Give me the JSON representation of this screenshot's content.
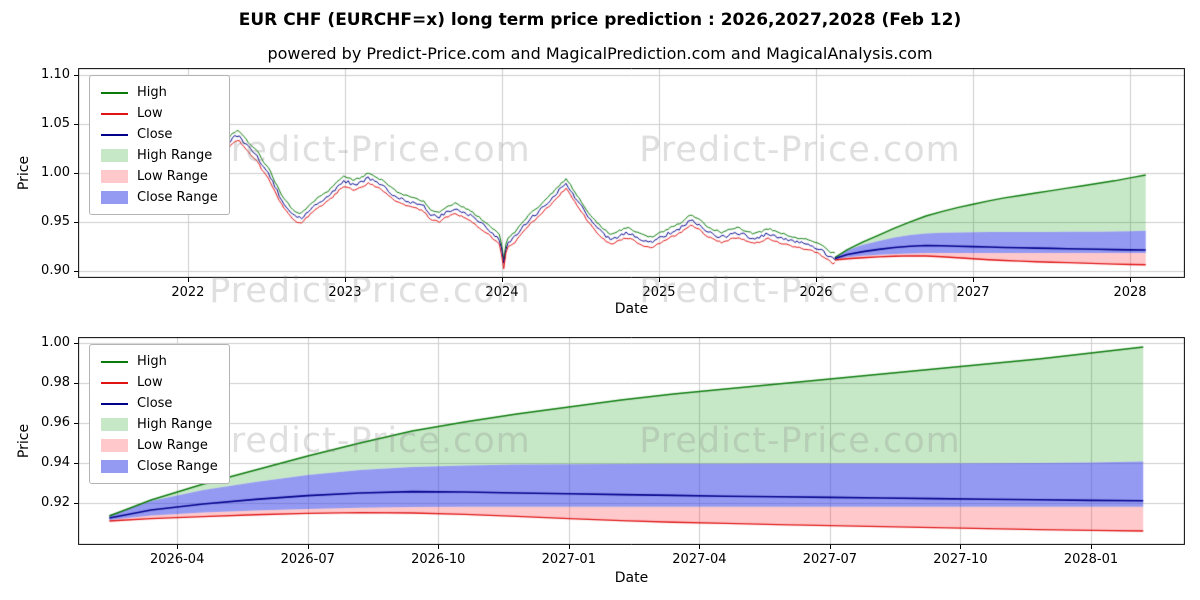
{
  "title": "EUR CHF (EURCHF=x) long term price prediction : 2026,2027,2028 (Feb 12)",
  "subtitle": "powered by Predict-Price.com and MagicalPrediction.com and MagicalAnalysis.com",
  "watermark": "Predict-Price.com",
  "colors": {
    "high_line": "#0a7a0a",
    "low_line": "#e01212",
    "close_line": "#00008b",
    "high_range": "rgba(0,150,0,0.22)",
    "low_range": "rgba(255,60,70,0.28)",
    "close_range": "rgba(60,70,230,0.55)",
    "grid": "#cccccc",
    "axis": "#000000",
    "watermark_color": "rgba(128,128,128,0.25)"
  },
  "legend": [
    {
      "label": "High",
      "kind": "line",
      "color_key": "high_line"
    },
    {
      "label": "Low",
      "kind": "line",
      "color_key": "low_line"
    },
    {
      "label": "Close",
      "kind": "line",
      "color_key": "close_line"
    },
    {
      "label": "High Range",
      "kind": "patch",
      "color_key": "high_range"
    },
    {
      "label": "Low Range",
      "kind": "patch",
      "color_key": "low_range"
    },
    {
      "label": "Close Range",
      "kind": "patch",
      "color_key": "close_range"
    }
  ],
  "chart_data": {
    "type": "line",
    "forecast": {
      "t": [
        2026.12,
        2026.2,
        2026.3,
        2026.4,
        2026.5,
        2026.6,
        2026.7,
        2026.8,
        2026.9,
        2027.0,
        2027.1,
        2027.2,
        2027.3,
        2027.4,
        2027.5,
        2027.6,
        2027.7,
        2027.8,
        2027.9,
        2028.0,
        2028.1
      ],
      "high": [
        0.9135,
        0.9215,
        0.9295,
        0.9365,
        0.9435,
        0.95,
        0.956,
        0.9605,
        0.9645,
        0.968,
        0.9715,
        0.9745,
        0.977,
        0.9795,
        0.982,
        0.9845,
        0.987,
        0.9895,
        0.992,
        0.995,
        0.998
      ],
      "close_high": [
        0.914,
        0.921,
        0.9265,
        0.9305,
        0.934,
        0.9365,
        0.938,
        0.9388,
        0.9392,
        0.9394,
        0.9395,
        0.9396,
        0.9396,
        0.9397,
        0.9397,
        0.9398,
        0.9398,
        0.9399,
        0.94,
        0.9403,
        0.9408
      ],
      "close": [
        0.9125,
        0.9165,
        0.9195,
        0.9218,
        0.9237,
        0.925,
        0.9257,
        0.9255,
        0.925,
        0.9246,
        0.9242,
        0.9238,
        0.9234,
        0.9231,
        0.9228,
        0.9225,
        0.9222,
        0.9219,
        0.9216,
        0.9213,
        0.9211
      ],
      "close_low": [
        0.9115,
        0.9138,
        0.9152,
        0.9162,
        0.917,
        0.9176,
        0.918,
        0.9181,
        0.9181,
        0.9181,
        0.9181,
        0.9181,
        0.9181,
        0.9181,
        0.9181,
        0.9181,
        0.9181,
        0.9181,
        0.9181,
        0.9181,
        0.9181
      ],
      "low": [
        0.911,
        0.9122,
        0.9132,
        0.9141,
        0.9148,
        0.9152,
        0.915,
        0.9143,
        0.9133,
        0.9122,
        0.9112,
        0.9104,
        0.9098,
        0.9092,
        0.9087,
        0.9082,
        0.9077,
        0.9072,
        0.9067,
        0.9063,
        0.906
      ]
    },
    "charts": [
      {
        "name": "history-and-forecast",
        "xlabel": "Date",
        "ylabel": "Price",
        "x_range": [
          2021.3,
          2028.35
        ],
        "y_range": [
          0.8925,
          1.1075
        ],
        "x_ticks": [
          [
            2022,
            "2022"
          ],
          [
            2023,
            "2023"
          ],
          [
            2024,
            "2024"
          ],
          [
            2025,
            "2025"
          ],
          [
            2026,
            "2026"
          ],
          [
            2027,
            "2027"
          ],
          [
            2028,
            "2028"
          ]
        ],
        "y_ticks": [
          [
            0.9,
            "0.90"
          ],
          [
            0.95,
            "0.95"
          ],
          [
            1.0,
            "1.00"
          ],
          [
            1.05,
            "1.05"
          ],
          [
            1.1,
            "1.10"
          ]
        ],
        "noise": {
          "samples": 330,
          "amplitude": 0.0036,
          "hl_gap": 0.0042,
          "seed": 20260212
        },
        "historical": [
          [
            2021.45,
            1.093
          ],
          [
            2021.52,
            1.0885
          ],
          [
            2021.58,
            1.0855
          ],
          [
            2021.63,
            1.081
          ],
          [
            2021.68,
            1.0775
          ],
          [
            2021.73,
            1.074
          ],
          [
            2021.78,
            1.069
          ],
          [
            2021.83,
            1.063
          ],
          [
            2021.88,
            1.056
          ],
          [
            2021.93,
            1.048
          ],
          [
            2021.98,
            1.039
          ],
          [
            2022.03,
            1.042
          ],
          [
            2022.08,
            1.057
          ],
          [
            2022.11,
            1.046
          ],
          [
            2022.14,
            1.028
          ],
          [
            2022.17,
            1.003
          ],
          [
            2022.2,
            1.012
          ],
          [
            2022.24,
            1.026
          ],
          [
            2022.28,
            1.035
          ],
          [
            2022.32,
            1.039
          ],
          [
            2022.36,
            1.031
          ],
          [
            2022.4,
            1.024
          ],
          [
            2022.44,
            1.018
          ],
          [
            2022.48,
            1.006
          ],
          [
            2022.52,
            0.998
          ],
          [
            2022.56,
            0.984
          ],
          [
            2022.6,
            0.972
          ],
          [
            2022.64,
            0.963
          ],
          [
            2022.68,
            0.956
          ],
          [
            2022.72,
            0.953
          ],
          [
            2022.76,
            0.96
          ],
          [
            2022.8,
            0.966
          ],
          [
            2022.84,
            0.971
          ],
          [
            2022.88,
            0.975
          ],
          [
            2022.92,
            0.98
          ],
          [
            2022.96,
            0.987
          ],
          [
            2023.0,
            0.992
          ],
          [
            2023.05,
            0.988
          ],
          [
            2023.1,
            0.99
          ],
          [
            2023.15,
            0.995
          ],
          [
            2023.2,
            0.991
          ],
          [
            2023.25,
            0.986
          ],
          [
            2023.3,
            0.979
          ],
          [
            2023.35,
            0.974
          ],
          [
            2023.4,
            0.971
          ],
          [
            2023.45,
            0.969
          ],
          [
            2023.5,
            0.966
          ],
          [
            2023.55,
            0.957
          ],
          [
            2023.6,
            0.955
          ],
          [
            2023.65,
            0.96
          ],
          [
            2023.7,
            0.964
          ],
          [
            2023.75,
            0.96
          ],
          [
            2023.8,
            0.956
          ],
          [
            2023.85,
            0.95
          ],
          [
            2023.9,
            0.944
          ],
          [
            2023.95,
            0.937
          ],
          [
            2023.99,
            0.931
          ],
          [
            2024.01,
            0.905
          ],
          [
            2024.03,
            0.928
          ],
          [
            2024.08,
            0.934
          ],
          [
            2024.13,
            0.944
          ],
          [
            2024.18,
            0.953
          ],
          [
            2024.23,
            0.96
          ],
          [
            2024.28,
            0.968
          ],
          [
            2024.33,
            0.976
          ],
          [
            2024.38,
            0.985
          ],
          [
            2024.41,
            0.989
          ],
          [
            2024.45,
            0.979
          ],
          [
            2024.5,
            0.967
          ],
          [
            2024.55,
            0.955
          ],
          [
            2024.6,
            0.945
          ],
          [
            2024.65,
            0.937
          ],
          [
            2024.7,
            0.932
          ],
          [
            2024.75,
            0.936
          ],
          [
            2024.8,
            0.939
          ],
          [
            2024.85,
            0.935
          ],
          [
            2024.9,
            0.931
          ],
          [
            2024.95,
            0.929
          ],
          [
            2025.0,
            0.933
          ],
          [
            2025.05,
            0.937
          ],
          [
            2025.1,
            0.941
          ],
          [
            2025.15,
            0.945
          ],
          [
            2025.2,
            0.952
          ],
          [
            2025.25,
            0.948
          ],
          [
            2025.3,
            0.941
          ],
          [
            2025.35,
            0.937
          ],
          [
            2025.4,
            0.934
          ],
          [
            2025.45,
            0.937
          ],
          [
            2025.5,
            0.939
          ],
          [
            2025.55,
            0.936
          ],
          [
            2025.6,
            0.933
          ],
          [
            2025.65,
            0.935
          ],
          [
            2025.7,
            0.938
          ],
          [
            2025.75,
            0.935
          ],
          [
            2025.8,
            0.932
          ],
          [
            2025.85,
            0.93
          ],
          [
            2025.9,
            0.928
          ],
          [
            2025.95,
            0.927
          ],
          [
            2026.0,
            0.924
          ],
          [
            2026.05,
            0.919
          ],
          [
            2026.1,
            0.913
          ],
          [
            2026.12,
            0.9125
          ]
        ]
      },
      {
        "name": "forecast-detail",
        "xlabel": "Date",
        "ylabel": "Price",
        "x_range": [
          2026.06,
          2028.18
        ],
        "y_range": [
          0.899,
          1.003
        ],
        "x_ticks": [
          [
            2026.25,
            "2026-04"
          ],
          [
            2026.5,
            "2026-07"
          ],
          [
            2026.75,
            "2026-10"
          ],
          [
            2027.0,
            "2027-01"
          ],
          [
            2027.25,
            "2027-04"
          ],
          [
            2027.5,
            "2027-07"
          ],
          [
            2027.75,
            "2027-10"
          ],
          [
            2028.0,
            "2028-01"
          ]
        ],
        "y_ticks": [
          [
            0.92,
            "0.92"
          ],
          [
            0.94,
            "0.94"
          ],
          [
            0.96,
            "0.96"
          ],
          [
            0.98,
            "0.98"
          ],
          [
            1.0,
            "1.00"
          ]
        ]
      }
    ]
  }
}
